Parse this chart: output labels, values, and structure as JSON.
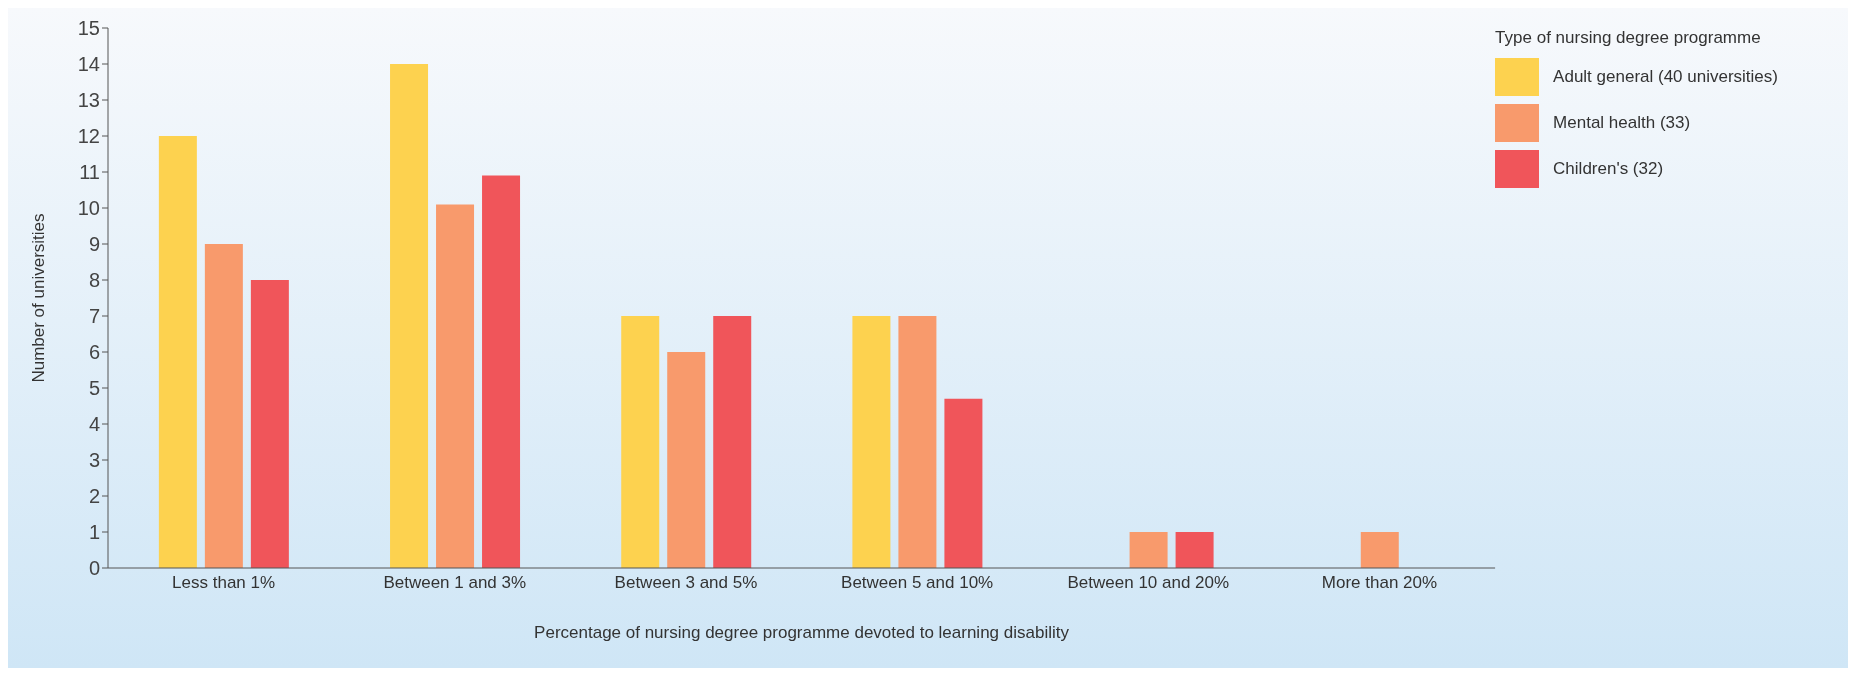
{
  "chart_data": {
    "type": "bar",
    "xlabel": "Percentage of nursing degree programme devoted to learning disability",
    "ylabel": "Number of universities",
    "legend_title": "Type of nursing degree programme",
    "categories": [
      "Less than 1%",
      "Between 1 and 3%",
      "Between 3 and 5%",
      "Between 5 and 10%",
      "Between 10 and 20%",
      "More than 20%"
    ],
    "series": [
      {
        "name": "Adult general (40 universities)",
        "color": "#fdd24f",
        "values": [
          12,
          14,
          7,
          7,
          0,
          0
        ]
      },
      {
        "name": "Mental health (33)",
        "color": "#f89a6c",
        "values": [
          9,
          10.1,
          6,
          7,
          1,
          1
        ]
      },
      {
        "name": "Children's (32)",
        "color": "#f0555a",
        "values": [
          8,
          10.9,
          7,
          4.7,
          1,
          0
        ]
      }
    ],
    "ylim": [
      0,
      15
    ],
    "yticks": [
      0,
      1,
      2,
      3,
      4,
      5,
      6,
      7,
      8,
      9,
      10,
      11,
      12,
      13,
      14,
      15
    ],
    "grid": false,
    "legend": "top right"
  }
}
